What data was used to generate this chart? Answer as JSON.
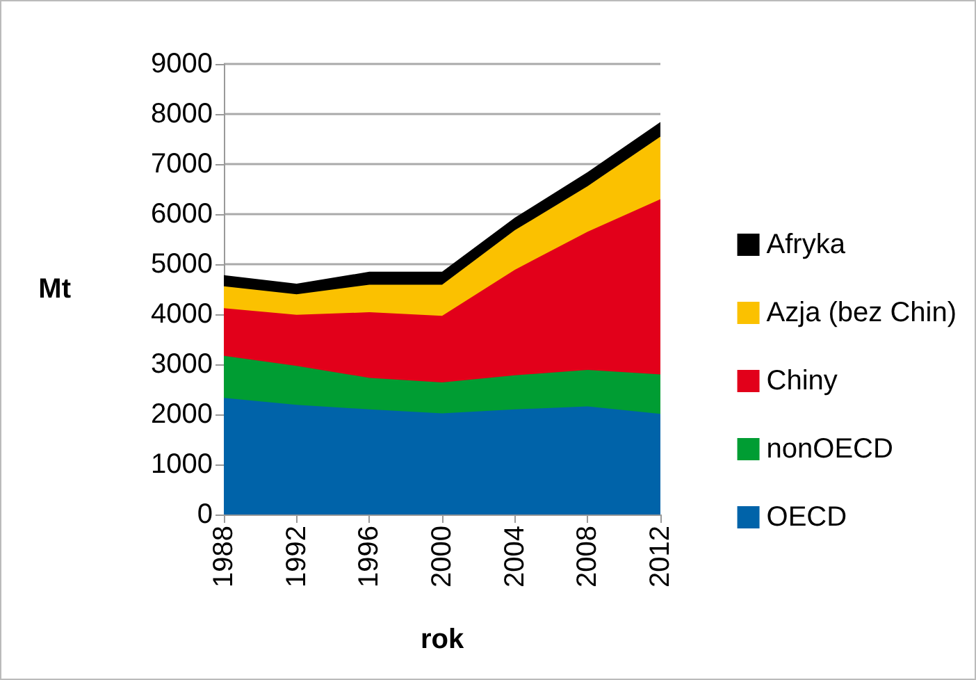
{
  "chart_data": {
    "type": "area",
    "stacked": true,
    "xlabel": "rok",
    "ylabel": "Mt",
    "x": [
      1988,
      1992,
      1996,
      2000,
      2004,
      2008,
      2012
    ],
    "xlim": [
      1988,
      2012
    ],
    "xticks": [
      1988,
      1992,
      1996,
      2000,
      2004,
      2008,
      2012
    ],
    "ylim": [
      0,
      9000
    ],
    "yticks": [
      0,
      1000,
      2000,
      3000,
      4000,
      5000,
      6000,
      7000,
      8000,
      9000
    ],
    "grid": "y",
    "legend": "right",
    "series": [
      {
        "name": "OECD",
        "color": "#0063a9",
        "values": [
          2330,
          2190,
          2100,
          2020,
          2100,
          2160,
          2010
        ]
      },
      {
        "name": "nonOECD",
        "color": "#009d33",
        "values": [
          840,
          780,
          630,
          620,
          680,
          730,
          790
        ]
      },
      {
        "name": "Chiny",
        "color": "#e2001a",
        "values": [
          950,
          1020,
          1310,
          1330,
          2110,
          2760,
          3500
        ]
      },
      {
        "name": "Azja (bez Chin)",
        "color": "#fbc100",
        "values": [
          440,
          410,
          550,
          620,
          790,
          910,
          1250
        ]
      },
      {
        "name": "Afryka",
        "color": "#000000",
        "values": [
          220,
          210,
          260,
          260,
          250,
          280,
          290
        ]
      }
    ]
  }
}
